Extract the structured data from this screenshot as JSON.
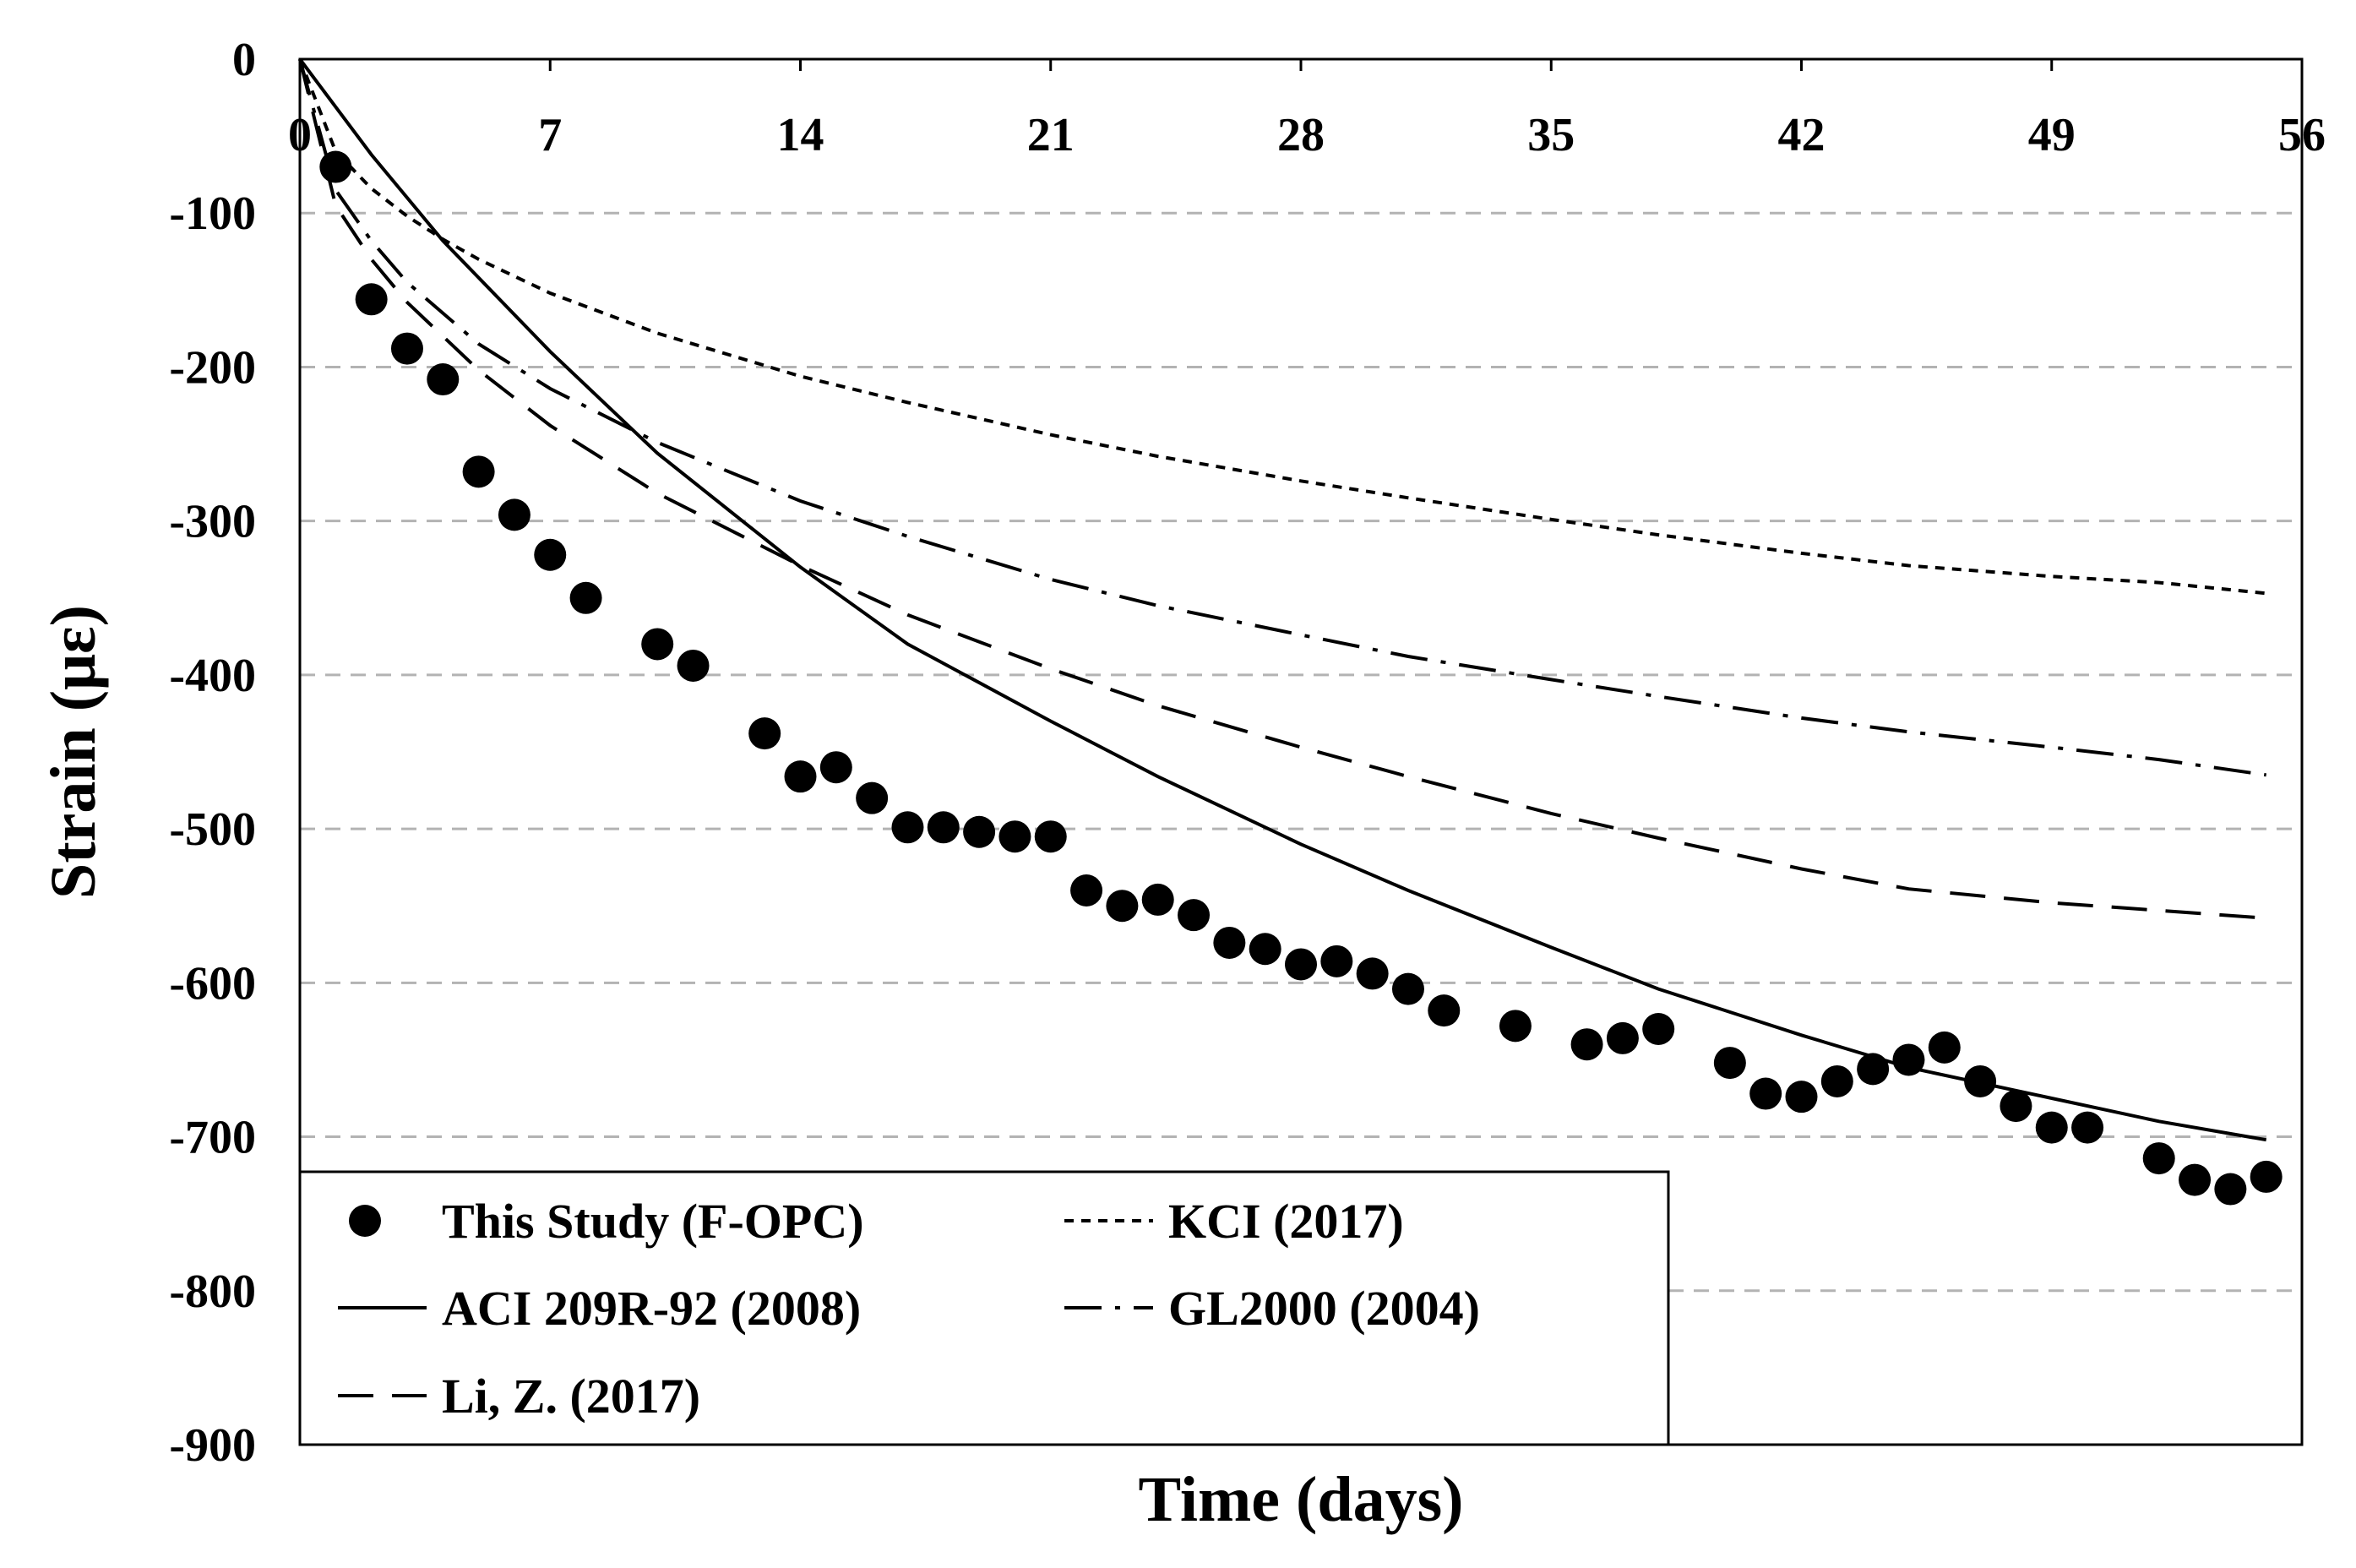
{
  "chart_data": {
    "type": "scatter",
    "title": "",
    "xlabel": "Time (days)",
    "ylabel": "Strain (με)",
    "xlim": [
      0,
      56
    ],
    "ylim": [
      -900,
      0
    ],
    "xticks": [
      0,
      7,
      14,
      21,
      28,
      35,
      42,
      49,
      56
    ],
    "xtick_labels": [
      "0",
      "7",
      "14",
      "21",
      "28",
      "35",
      "42",
      "49",
      "56"
    ],
    "yticks": [
      0,
      -100,
      -200,
      -300,
      -400,
      -500,
      -600,
      -700,
      -800,
      -900
    ],
    "ytick_labels": [
      "0",
      "-100",
      "-200",
      "-300",
      "-400",
      "-500",
      "-600",
      "-700",
      "-800",
      "-900"
    ],
    "grid": "horizontal dashed",
    "x_axis_position": "top",
    "legend_position": "bottom-left",
    "series": [
      {
        "name": "This Study (F-OPC)",
        "style": "marker",
        "points": [
          [
            1,
            -70
          ],
          [
            2,
            -156
          ],
          [
            3,
            -188
          ],
          [
            4,
            -208
          ],
          [
            5,
            -268
          ],
          [
            6,
            -296
          ],
          [
            7,
            -322
          ],
          [
            8,
            -350
          ],
          [
            10,
            -380
          ],
          [
            11,
            -394
          ],
          [
            13,
            -438
          ],
          [
            14,
            -466
          ],
          [
            15,
            -460
          ],
          [
            16,
            -480
          ],
          [
            17,
            -499
          ],
          [
            18,
            -499
          ],
          [
            19,
            -502
          ],
          [
            20,
            -505
          ],
          [
            21,
            -505
          ],
          [
            22,
            -540
          ],
          [
            23,
            -550
          ],
          [
            24,
            -546
          ],
          [
            25,
            -556
          ],
          [
            26,
            -574
          ],
          [
            27,
            -578
          ],
          [
            28,
            -588
          ],
          [
            29,
            -586
          ],
          [
            30,
            -594
          ],
          [
            31,
            -604
          ],
          [
            32,
            -618
          ],
          [
            34,
            -628
          ],
          [
            36,
            -640
          ],
          [
            37,
            -636
          ],
          [
            38,
            -630
          ],
          [
            40,
            -652
          ],
          [
            41,
            -672
          ],
          [
            42,
            -674
          ],
          [
            43,
            -664
          ],
          [
            44,
            -656
          ],
          [
            45,
            -650
          ],
          [
            46,
            -642
          ],
          [
            47,
            -664
          ],
          [
            48,
            -680
          ],
          [
            49,
            -694
          ],
          [
            50,
            -694
          ],
          [
            52,
            -714
          ],
          [
            53,
            -728
          ],
          [
            54,
            -734
          ],
          [
            55,
            -726
          ]
        ]
      },
      {
        "name": "KCI (2017)",
        "style": "short-dash",
        "points": [
          [
            0,
            0
          ],
          [
            1,
            -60
          ],
          [
            2,
            -84
          ],
          [
            3,
            -102
          ],
          [
            4,
            -117
          ],
          [
            5,
            -130
          ],
          [
            7,
            -152
          ],
          [
            10,
            -178
          ],
          [
            14,
            -206
          ],
          [
            17,
            -223
          ],
          [
            21,
            -244
          ],
          [
            24,
            -258
          ],
          [
            28,
            -274
          ],
          [
            31,
            -285
          ],
          [
            35,
            -299
          ],
          [
            38,
            -309
          ],
          [
            42,
            -321
          ],
          [
            45,
            -329
          ],
          [
            49,
            -336
          ],
          [
            52,
            -340
          ],
          [
            55,
            -347
          ]
        ]
      },
      {
        "name": "ACI 209R-92 (2008)",
        "style": "solid",
        "points": [
          [
            0,
            0
          ],
          [
            2,
            -62
          ],
          [
            4,
            -118
          ],
          [
            7,
            -190
          ],
          [
            10,
            -256
          ],
          [
            14,
            -330
          ],
          [
            17,
            -380
          ],
          [
            21,
            -430
          ],
          [
            24,
            -466
          ],
          [
            28,
            -510
          ],
          [
            31,
            -540
          ],
          [
            35,
            -577
          ],
          [
            38,
            -604
          ],
          [
            42,
            -634
          ],
          [
            45,
            -655
          ],
          [
            49,
            -675
          ],
          [
            52,
            -690
          ],
          [
            55,
            -702
          ]
        ]
      },
      {
        "name": "GL2000 (2004)",
        "style": "dash-dot",
        "points": [
          [
            0,
            0
          ],
          [
            1,
            -85
          ],
          [
            2,
            -118
          ],
          [
            3,
            -145
          ],
          [
            5,
            -185
          ],
          [
            7,
            -214
          ],
          [
            10,
            -249
          ],
          [
            14,
            -287
          ],
          [
            17,
            -310
          ],
          [
            21,
            -338
          ],
          [
            24,
            -355
          ],
          [
            28,
            -374
          ],
          [
            31,
            -388
          ],
          [
            35,
            -403
          ],
          [
            38,
            -414
          ],
          [
            42,
            -428
          ],
          [
            45,
            -437
          ],
          [
            49,
            -447
          ],
          [
            52,
            -455
          ],
          [
            55,
            -465
          ]
        ]
      },
      {
        "name": "Li, Z. (2017)",
        "style": "long-dash",
        "points": [
          [
            0,
            0
          ],
          [
            1,
            -95
          ],
          [
            2,
            -130
          ],
          [
            3,
            -158
          ],
          [
            5,
            -202
          ],
          [
            7,
            -238
          ],
          [
            10,
            -282
          ],
          [
            14,
            -329
          ],
          [
            17,
            -361
          ],
          [
            21,
            -396
          ],
          [
            24,
            -420
          ],
          [
            28,
            -447
          ],
          [
            31,
            -466
          ],
          [
            35,
            -490
          ],
          [
            38,
            -506
          ],
          [
            42,
            -526
          ],
          [
            45,
            -539
          ],
          [
            49,
            -548
          ],
          [
            52,
            -553
          ],
          [
            55,
            -558
          ]
        ]
      }
    ]
  }
}
